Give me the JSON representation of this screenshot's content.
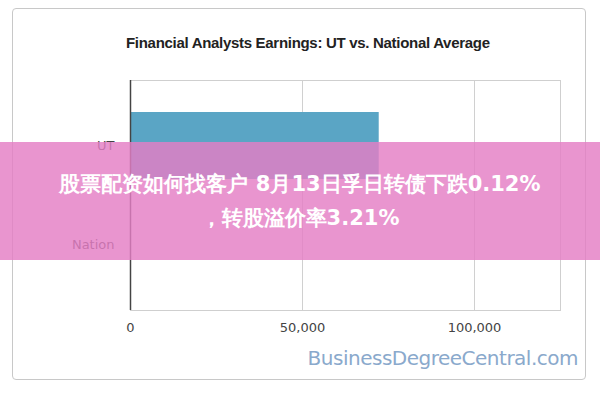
{
  "chart_data": {
    "type": "bar",
    "orientation": "horizontal",
    "title": "Financial Analysts Earnings: UT vs. National Average",
    "categories": [
      "UT",
      "Nation"
    ],
    "values": [
      72300,
      null
    ],
    "color": "#5aa5c5",
    "xlim": [
      0,
      125000
    ],
    "xticks": [
      0,
      {
        "value": 50000,
        "label": "50,000"
      },
      {
        "value": 100000,
        "label": "100,000"
      }
    ],
    "grid": true,
    "source": "BusinessDegreeCentral.com",
    "annotations": [
      "股票配资如何找客户 8月13日孚日转债下跌0.12%",
      "，转股溢价率3.21%"
    ]
  }
}
